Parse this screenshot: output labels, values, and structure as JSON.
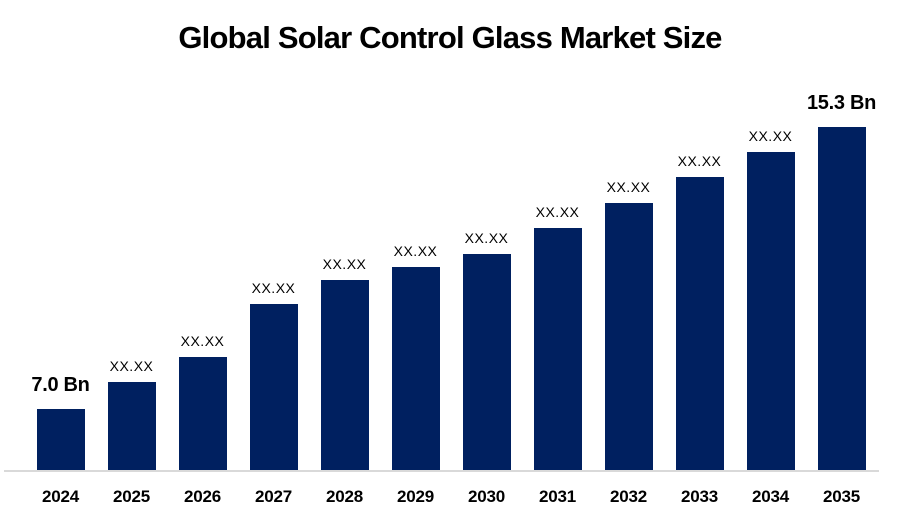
{
  "chart_data": {
    "type": "bar",
    "title": "Global Solar Control Glass Market Size",
    "categories": [
      "2024",
      "2025",
      "2026",
      "2027",
      "2028",
      "2029",
      "2030",
      "2031",
      "2032",
      "2033",
      "2034",
      "2035"
    ],
    "values": [
      7.0,
      7.8,
      8.53,
      10.09,
      10.8,
      11.18,
      11.56,
      12.33,
      13.06,
      13.83,
      14.56,
      15.3
    ],
    "bar_labels": [
      "7.0 Bn",
      "XX.XX",
      "XX.XX",
      "XX.XX",
      "XX.XX",
      "XX.XX",
      "XX.XX",
      "XX.XX",
      "XX.XX",
      "XX.XX",
      "XX.XX",
      "15.3 Bn"
    ],
    "values_note": "Only 2024 (7.0 Bn) and 2035 (15.3 Bn) are labeled; intermediate values are masked as XX.XX and estimated from bar heights",
    "xlabel": "",
    "ylabel": "",
    "ylim": [
      5.2,
      15.3
    ],
    "grid": false,
    "legend": "none",
    "colors": {
      "bar": "#002060",
      "axis_line": "#d9d9d9",
      "text": "#000000"
    }
  }
}
